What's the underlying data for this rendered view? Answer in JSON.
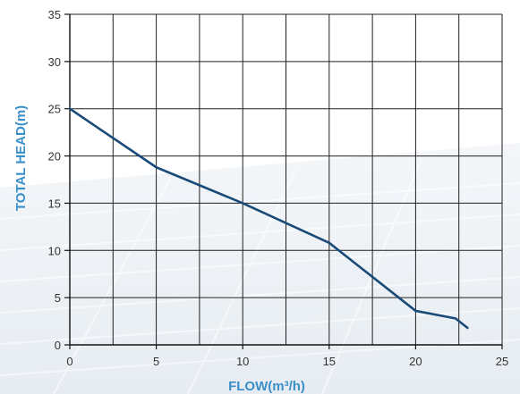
{
  "chart_data": {
    "type": "line",
    "xlabel": "FLOW(m³/h)",
    "ylabel": "TOTAL HEAD(m)",
    "xlim": [
      0,
      25
    ],
    "ylim": [
      0,
      35
    ],
    "x_ticks": [
      "0",
      "5",
      "10",
      "15",
      "20",
      "25"
    ],
    "y_ticks": [
      "0",
      "5",
      "10",
      "15",
      "20",
      "25",
      "30",
      "35"
    ],
    "grid": true,
    "series": [
      {
        "x": [
          0,
          5,
          10,
          15,
          20,
          22.3,
          23
        ],
        "y": [
          25,
          18.8,
          15,
          10.8,
          3.6,
          2.8,
          1.8
        ],
        "color": "#1a4a78"
      }
    ],
    "colors": {
      "axis_label": "#3a8fc8",
      "tick_label": "#333333",
      "grid": "#1f1f1f",
      "background_tint": "#dfe6ee"
    }
  }
}
